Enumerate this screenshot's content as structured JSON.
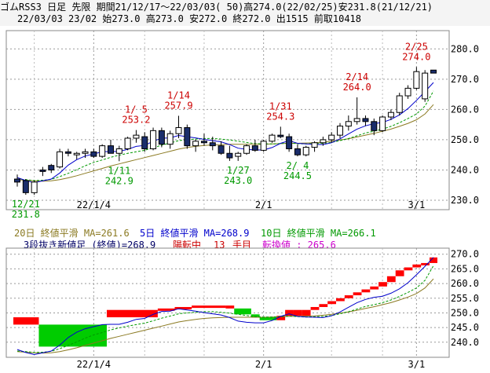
{
  "header": {
    "title": "ゴムRSS3 日足 先限 期間21/12/17～22/03/03( 50)高274.0(22/02/25)安231.8(21/12/21)",
    "info": "22/03/03 23/02 始273.0 高273.0 安272.0 終272.0 出1515 前取10418"
  },
  "legend": {
    "ma20": "20日 終値平滑 MA=261.6",
    "ma5": "5日 終値平滑 MA=268.9",
    "ma10": "10日 終値平滑 MA=266.1"
  },
  "three_line_break": {
    "label_main": "3段抜き新値足 (終値)=268.9",
    "label_state": "陽転中",
    "label_count_num": "13",
    "label_count_unit": "手目",
    "label_switch": "転換値 : 265.6"
  },
  "colors": {
    "up_candle": "#ffffff",
    "down_candle": "#1a2d6b",
    "ma5": "#0000cc",
    "ma10": "#009900",
    "ma20": "#8b7a22",
    "high_annot": "#cc0000",
    "low_annot": "#009900",
    "brick_up": "#ff0000",
    "brick_down": "#00cc00"
  },
  "chart_data": [
    {
      "type": "candlestick",
      "x_tick_labels": [
        "22/1/4",
        "2/1",
        "3/1"
      ],
      "ylim": [
        230,
        285
      ],
      "y_ticks": [
        230.0,
        240.0,
        250.0,
        260.0,
        270.0,
        280.0
      ],
      "grid": true,
      "candles": [
        {
          "o": 237.0,
          "h": 238.5,
          "l": 234.5,
          "c": 236.0
        },
        {
          "o": 236.5,
          "h": 237.0,
          "l": 231.8,
          "c": 232.5
        },
        {
          "o": 232.5,
          "h": 236.5,
          "l": 231.8,
          "c": 236.0
        },
        {
          "o": 240.0,
          "h": 241.0,
          "l": 238.0,
          "c": 239.5
        },
        {
          "o": 241.5,
          "h": 242.0,
          "l": 239.0,
          "c": 240.0
        },
        {
          "o": 241.0,
          "h": 247.0,
          "l": 240.5,
          "c": 246.0
        },
        {
          "o": 246.0,
          "h": 247.0,
          "l": 244.5,
          "c": 245.5
        },
        {
          "o": 245.0,
          "h": 246.0,
          "l": 243.5,
          "c": 245.5
        },
        {
          "o": 245.5,
          "h": 247.0,
          "l": 244.0,
          "c": 246.0
        },
        {
          "o": 246.0,
          "h": 247.0,
          "l": 244.0,
          "c": 244.5
        },
        {
          "o": 244.5,
          "h": 248.5,
          "l": 244.0,
          "c": 248.0
        },
        {
          "o": 248.0,
          "h": 250.0,
          "l": 246.0,
          "c": 245.5
        },
        {
          "o": 245.5,
          "h": 248.0,
          "l": 242.9,
          "c": 247.0
        },
        {
          "o": 247.0,
          "h": 251.0,
          "l": 246.5,
          "c": 250.5
        },
        {
          "o": 250.5,
          "h": 253.2,
          "l": 249.0,
          "c": 251.5
        },
        {
          "o": 251.0,
          "h": 252.5,
          "l": 246.0,
          "c": 247.0
        },
        {
          "o": 247.0,
          "h": 254.0,
          "l": 246.5,
          "c": 253.0
        },
        {
          "o": 253.0,
          "h": 254.0,
          "l": 247.5,
          "c": 248.5
        },
        {
          "o": 248.5,
          "h": 253.0,
          "l": 247.0,
          "c": 252.0
        },
        {
          "o": 252.0,
          "h": 257.9,
          "l": 250.5,
          "c": 254.0
        },
        {
          "o": 254.0,
          "h": 255.0,
          "l": 247.0,
          "c": 248.0
        },
        {
          "o": 248.0,
          "h": 250.0,
          "l": 246.0,
          "c": 249.5
        },
        {
          "o": 249.5,
          "h": 252.0,
          "l": 248.0,
          "c": 249.0
        },
        {
          "o": 249.0,
          "h": 251.0,
          "l": 246.5,
          "c": 248.0
        },
        {
          "o": 248.0,
          "h": 249.5,
          "l": 245.0,
          "c": 245.5
        },
        {
          "o": 245.5,
          "h": 248.0,
          "l": 243.0,
          "c": 244.0
        },
        {
          "o": 244.5,
          "h": 246.0,
          "l": 243.0,
          "c": 245.5
        },
        {
          "o": 245.5,
          "h": 248.5,
          "l": 245.0,
          "c": 248.0
        },
        {
          "o": 248.0,
          "h": 250.0,
          "l": 246.0,
          "c": 246.5
        },
        {
          "o": 246.5,
          "h": 250.0,
          "l": 246.0,
          "c": 249.5
        },
        {
          "o": 249.5,
          "h": 252.0,
          "l": 249.0,
          "c": 251.5
        },
        {
          "o": 251.5,
          "h": 254.3,
          "l": 250.5,
          "c": 251.0
        },
        {
          "o": 251.0,
          "h": 252.0,
          "l": 246.0,
          "c": 247.0
        },
        {
          "o": 247.0,
          "h": 248.5,
          "l": 244.5,
          "c": 245.0
        },
        {
          "o": 245.0,
          "h": 248.0,
          "l": 244.5,
          "c": 247.5
        },
        {
          "o": 247.5,
          "h": 249.5,
          "l": 246.0,
          "c": 249.0
        },
        {
          "o": 249.0,
          "h": 251.0,
          "l": 248.0,
          "c": 250.0
        },
        {
          "o": 250.0,
          "h": 252.5,
          "l": 249.0,
          "c": 251.5
        },
        {
          "o": 251.5,
          "h": 255.5,
          "l": 250.5,
          "c": 254.5
        },
        {
          "o": 254.5,
          "h": 258.0,
          "l": 253.0,
          "c": 256.0
        },
        {
          "o": 256.0,
          "h": 264.0,
          "l": 255.0,
          "c": 257.0
        },
        {
          "o": 257.0,
          "h": 258.0,
          "l": 254.5,
          "c": 256.0
        },
        {
          "o": 256.0,
          "h": 257.0,
          "l": 251.5,
          "c": 253.0
        },
        {
          "o": 253.0,
          "h": 258.0,
          "l": 252.5,
          "c": 257.5
        },
        {
          "o": 257.5,
          "h": 260.0,
          "l": 256.5,
          "c": 259.0
        },
        {
          "o": 259.0,
          "h": 265.5,
          "l": 258.0,
          "c": 264.5
        },
        {
          "o": 264.5,
          "h": 268.0,
          "l": 263.5,
          "c": 267.0
        },
        {
          "o": 267.0,
          "h": 274.0,
          "l": 266.5,
          "c": 272.5
        },
        {
          "o": 263.5,
          "h": 273.0,
          "l": 262.5,
          "c": 272.0
        },
        {
          "o": 273.0,
          "h": 273.0,
          "l": 272.0,
          "c": 272.0
        }
      ],
      "ma5": [
        237.5,
        236.5,
        235.8,
        236.4,
        237.0,
        239.0,
        241.6,
        243.4,
        244.6,
        245.3,
        246.0,
        246.1,
        246.1,
        246.8,
        247.8,
        248.1,
        249.5,
        250.5,
        250.6,
        251.4,
        251.0,
        250.6,
        250.1,
        249.7,
        249.3,
        248.4,
        247.2,
        246.8,
        246.6,
        246.6,
        247.4,
        248.8,
        249.7,
        248.8,
        248.6,
        248.5,
        248.4,
        249.0,
        250.3,
        251.9,
        253.5,
        254.6,
        255.3,
        255.7,
        256.7,
        258.2,
        260.3,
        263.0,
        265.9,
        268.9
      ],
      "ma10": [
        237.0,
        236.8,
        236.5,
        236.6,
        236.9,
        237.8,
        238.9,
        240.1,
        241.4,
        242.5,
        243.3,
        244.2,
        244.9,
        245.5,
        246.0,
        246.5,
        247.3,
        248.2,
        248.9,
        249.7,
        250.0,
        250.2,
        250.4,
        250.4,
        250.2,
        249.9,
        249.5,
        249.1,
        248.7,
        248.6,
        248.6,
        248.7,
        248.9,
        248.7,
        248.6,
        248.7,
        248.8,
        249.1,
        249.7,
        250.4,
        251.3,
        252.2,
        252.8,
        253.5,
        254.4,
        255.6,
        257.0,
        258.5,
        261.1,
        266.1
      ],
      "ma20": [
        236.8,
        236.6,
        236.4,
        236.3,
        236.4,
        236.8,
        237.4,
        238.1,
        238.9,
        239.7,
        240.5,
        241.3,
        242.0,
        242.7,
        243.4,
        244.1,
        244.8,
        245.5,
        246.2,
        246.9,
        247.4,
        247.8,
        248.1,
        248.3,
        248.4,
        248.5,
        248.5,
        248.5,
        248.5,
        248.5,
        248.6,
        248.7,
        248.8,
        248.8,
        248.9,
        249.0,
        249.2,
        249.5,
        249.9,
        250.3,
        250.9,
        251.5,
        252.1,
        252.8,
        253.5,
        254.4,
        255.4,
        256.6,
        258.5,
        261.6
      ],
      "annotations_high": [
        {
          "date": "1/ 5",
          "value": "253.2",
          "index": 14
        },
        {
          "date": "1/14",
          "value": "257.9",
          "index": 19
        },
        {
          "date": "1/31",
          "value": "254.3",
          "index": 31
        },
        {
          "date": "2/14",
          "value": "264.0",
          "index": 40
        },
        {
          "date": "2/25",
          "value": "274.0",
          "index": 47
        }
      ],
      "annotations_low": [
        {
          "date": "12/21",
          "value": "231.8",
          "index": 1
        },
        {
          "date": "1/11",
          "value": "242.9",
          "index": 12
        },
        {
          "date": "1/27",
          "value": "243.0",
          "index": 26
        },
        {
          "date": "2/ 4",
          "value": "244.5",
          "index": 33
        }
      ]
    },
    {
      "type": "three_line_break",
      "x_tick_labels": [
        "22/1/4",
        "2/1",
        "3/1"
      ],
      "ylim": [
        237,
        271
      ],
      "y_ticks": [
        240.0,
        245.0,
        250.0,
        255.0,
        260.0,
        265.0,
        270.0
      ],
      "grid": true,
      "bricks": [
        {
          "from": 246.0,
          "to": 248.5,
          "dir": "up"
        },
        {
          "from": 246.0,
          "to": 238.5,
          "dir": "down"
        },
        {
          "from": 248.5,
          "to": 251.0,
          "dir": "up"
        },
        {
          "from": 251.0,
          "to": 251.5,
          "dir": "up"
        },
        {
          "from": 251.5,
          "to": 252.0,
          "dir": "up"
        },
        {
          "from": 252.0,
          "to": 252.5,
          "dir": "up"
        },
        {
          "from": 252.5,
          "to": 251.5,
          "dir": "up"
        },
        {
          "from": 251.5,
          "to": 249.5,
          "dir": "down"
        },
        {
          "from": 249.5,
          "to": 248.5,
          "dir": "down"
        },
        {
          "from": 248.5,
          "to": 247.5,
          "dir": "down"
        },
        {
          "from": 247.5,
          "to": 249.0,
          "dir": "up"
        },
        {
          "from": 249.0,
          "to": 251.0,
          "dir": "up"
        },
        {
          "from": 249.0,
          "to": 251.0,
          "dir": "up"
        },
        {
          "from": 249.0,
          "to": 251.0,
          "dir": "up"
        },
        {
          "from": 251.0,
          "to": 252.0,
          "dir": "up"
        },
        {
          "from": 252.0,
          "to": 253.0,
          "dir": "up"
        },
        {
          "from": 253.0,
          "to": 254.0,
          "dir": "up"
        },
        {
          "from": 254.0,
          "to": 255.0,
          "dir": "up"
        },
        {
          "from": 255.0,
          "to": 256.0,
          "dir": "up"
        },
        {
          "from": 256.0,
          "to": 257.0,
          "dir": "up"
        },
        {
          "from": 257.0,
          "to": 258.0,
          "dir": "up"
        },
        {
          "from": 258.0,
          "to": 259.0,
          "dir": "up"
        },
        {
          "from": 259.0,
          "to": 260.5,
          "dir": "up"
        },
        {
          "from": 260.5,
          "to": 262.5,
          "dir": "up"
        },
        {
          "from": 262.5,
          "to": 264.5,
          "dir": "up"
        },
        {
          "from": 264.5,
          "to": 265.5,
          "dir": "up"
        },
        {
          "from": 265.5,
          "to": 266.5,
          "dir": "up"
        },
        {
          "from": 266.5,
          "to": 267.0,
          "dir": "up"
        },
        {
          "from": 267.0,
          "to": 268.9,
          "dir": "up"
        }
      ]
    }
  ]
}
